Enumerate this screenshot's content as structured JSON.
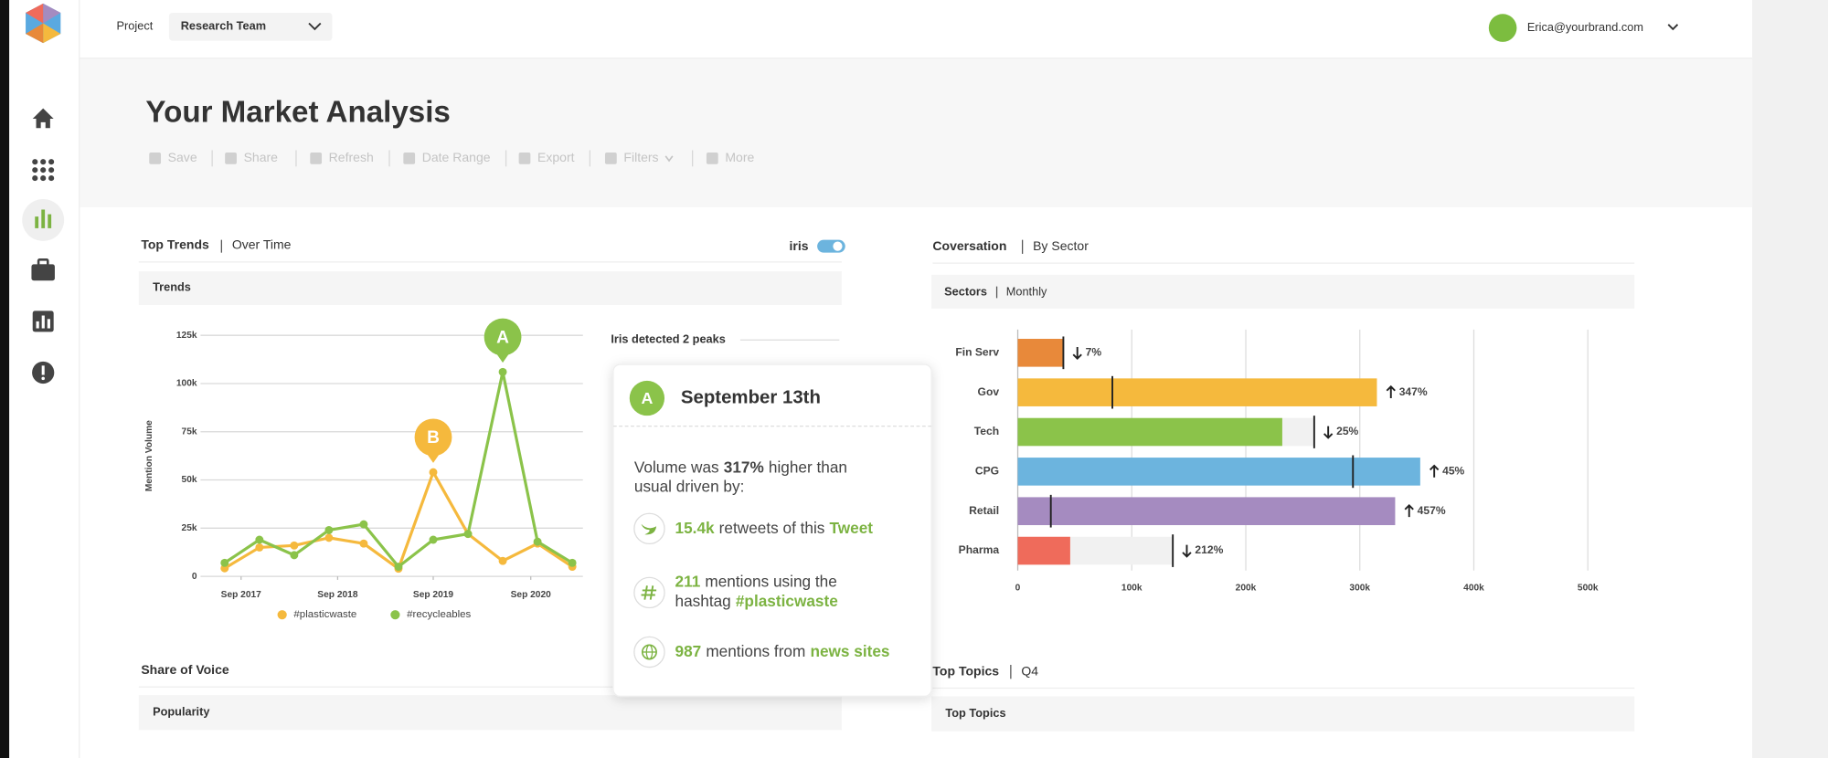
{
  "header": {
    "project_label": "Project",
    "project": "Research Team",
    "user": "Erica@yourbrand.com"
  },
  "page": {
    "title": "Your Market Analysis",
    "toolbar": [
      "Save",
      "Share",
      "Refresh",
      "Date Range",
      "Export",
      "Filters",
      "More"
    ]
  },
  "trends_panel": {
    "title": "Top Trends",
    "subtitle": "Over Time",
    "toggle_label": "iris",
    "card_title": "Trends"
  },
  "conversation_panel": {
    "title": "Coversation",
    "subtitle": "By Sector",
    "card_title": "Sectors",
    "card_subtitle": "Monthly"
  },
  "share_panel": {
    "title": "Share of Voice",
    "card_title": "Popularity"
  },
  "topics_panel": {
    "title": "Top Topics",
    "subtitle": "Q4",
    "card_title": "Top Topics"
  },
  "popup": {
    "badge": "A",
    "title": "September 13th",
    "intro_start": "Volume was",
    "intro_highlight": "317%",
    "intro_end": "higher than",
    "intro_line2": "usual driven by:",
    "items": [
      {
        "value": "15.4k",
        "text": "retweets of this",
        "link": "Tweet"
      },
      {
        "value": "211",
        "text": "mentions using the",
        "text2": "hashtag",
        "link": "#plasticwaste"
      },
      {
        "value": "987",
        "text": "mentions from",
        "link": "news sites"
      }
    ]
  },
  "chart_data": [
    {
      "type": "line",
      "y_label": "Mention Volume",
      "note": "Iris detected 2 peaks",
      "x": [
        2017.5,
        2017.86,
        2018.22,
        2018.58,
        2018.94,
        2019.3,
        2019.66,
        2020.02,
        2020.38,
        2020.74,
        2021.1
      ],
      "xlim": [
        2017.25,
        2021.21
      ],
      "xticks": [
        {
          "value": 2017.67,
          "label": "Sep 2017"
        },
        {
          "value": 2018.67,
          "label": "Sep 2018"
        },
        {
          "value": 2019.66,
          "label": "Sep 2019"
        },
        {
          "value": 2020.67,
          "label": "Sep 2020"
        }
      ],
      "ylim": [
        0,
        125000
      ],
      "yticks": [
        0,
        {
          "value": 25000,
          "label": "25k"
        },
        {
          "value": 50000,
          "label": "50k"
        },
        {
          "value": 75000,
          "label": "75k"
        },
        {
          "value": 100000,
          "label": "100k"
        },
        {
          "value": 125000,
          "label": "125k"
        }
      ],
      "grid": true,
      "series": [
        {
          "name": "#plasticwaste",
          "color": "#f5b93d",
          "values": [
            4200,
            15000,
            16000,
            20000,
            17000,
            4000,
            54000,
            22000,
            8000,
            17000,
            5000
          ]
        },
        {
          "name": "#recycleables",
          "color": "#8bc34a",
          "values": [
            7000,
            19000,
            11000,
            24000,
            27000,
            5000,
            19000,
            22000,
            106000,
            18000,
            7000
          ]
        }
      ],
      "annotations": [
        {
          "label": "A",
          "series": 1,
          "index": 8
        },
        {
          "label": "B",
          "series": 0,
          "index": 6
        }
      ]
    },
    {
      "type": "bar",
      "orientation": "horizontal",
      "categories": [
        "Fin Serv",
        "Gov",
        "Tech",
        "CPG",
        "Retail",
        "Pharma"
      ],
      "values": [
        40000,
        315000,
        232000,
        353000,
        331000,
        46000
      ],
      "previous": [
        40000,
        83000,
        260000,
        294000,
        29000,
        136000
      ],
      "colors": [
        "#e8893a",
        "#f5b93d",
        "#8bc34a",
        "#6cb4de",
        "#a58bc0",
        "#ef6b5b"
      ],
      "changes": [
        {
          "label": "7%",
          "direction": "down"
        },
        {
          "label": "347%",
          "direction": "up"
        },
        {
          "label": "25%",
          "direction": "down"
        },
        {
          "label": "45%",
          "direction": "up"
        },
        {
          "label": "457%",
          "direction": "up"
        },
        {
          "label": "212%",
          "direction": "down"
        }
      ],
      "xlim": [
        0,
        500000
      ],
      "xticks": [
        0,
        {
          "value": 100000,
          "label": "100k"
        },
        {
          "value": 200000,
          "label": "200k"
        },
        {
          "value": 300000,
          "label": "300k"
        },
        {
          "value": 400000,
          "label": "400k"
        },
        {
          "value": 500000,
          "label": "500k"
        }
      ],
      "grid": true
    }
  ]
}
